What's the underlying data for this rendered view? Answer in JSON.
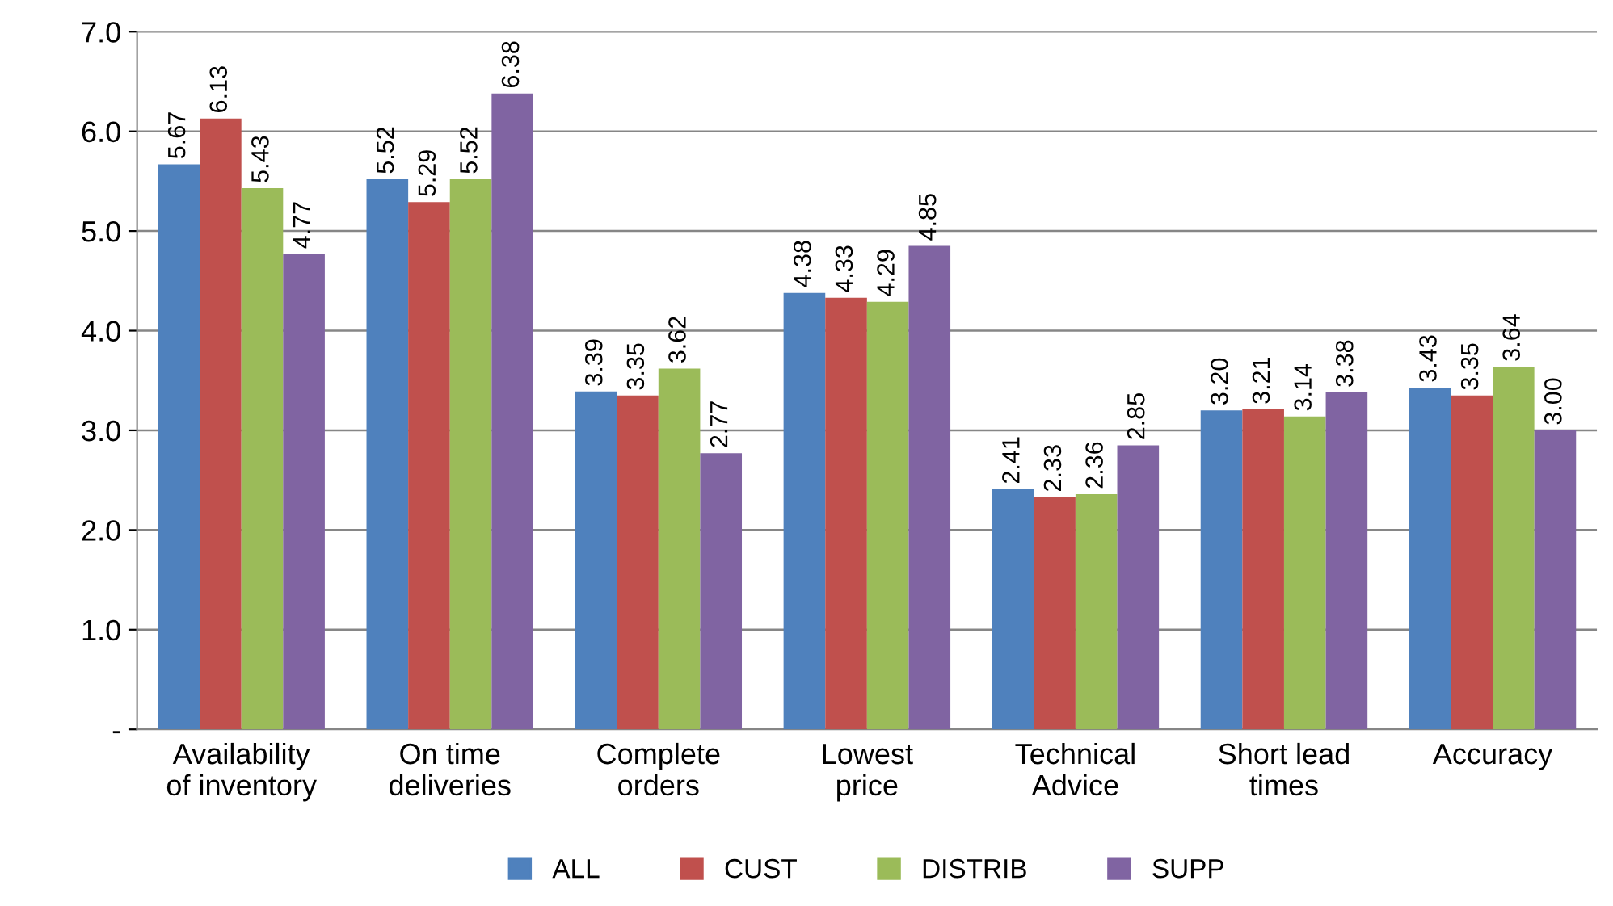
{
  "chart_data": {
    "type": "bar",
    "categories": [
      "Availability\nof inventory",
      "On time\ndeliveries",
      "Complete\norders",
      "Lowest\nprice",
      "Technical\nAdvice",
      "Short lead\ntimes",
      "Accuracy"
    ],
    "series": [
      {
        "name": "ALL",
        "color": "#4f81bd",
        "values": [
          5.67,
          5.52,
          3.39,
          4.38,
          2.41,
          3.2,
          3.43
        ],
        "value_labels": [
          "5.67",
          "5.52",
          "3.39",
          "4.38",
          "2.41",
          "3.20",
          "3.43"
        ]
      },
      {
        "name": "CUST",
        "color": "#c0504d",
        "values": [
          6.13,
          5.29,
          3.35,
          4.33,
          2.33,
          3.21,
          3.35
        ],
        "value_labels": [
          "6.13",
          "5.29",
          "3.35",
          "4.33",
          "2.33",
          "3.21",
          "3.35"
        ]
      },
      {
        "name": "DISTRIB",
        "color": "#9bbb59",
        "values": [
          5.43,
          5.52,
          3.62,
          4.29,
          2.36,
          3.14,
          3.64
        ],
        "value_labels": [
          "5.43",
          "5.52",
          "3.62",
          "4.29",
          "2.36",
          "3.14",
          "3.64"
        ]
      },
      {
        "name": "SUPP",
        "color": "#8064a2",
        "values": [
          4.77,
          6.38,
          2.77,
          4.85,
          2.85,
          3.38,
          3.0
        ],
        "value_labels": [
          "4.77",
          "6.38",
          "2.77",
          "4.85",
          "2.85",
          "3.38",
          "3.00"
        ]
      }
    ],
    "ylim": [
      0,
      7
    ],
    "yticks": [
      {
        "value": 0,
        "label": "-"
      },
      {
        "value": 1,
        "label": "1.0"
      },
      {
        "value": 2,
        "label": "2.0"
      },
      {
        "value": 3,
        "label": "3.0"
      },
      {
        "value": 4,
        "label": "4.0"
      },
      {
        "value": 5,
        "label": "5.0"
      },
      {
        "value": 6,
        "label": "6.0"
      },
      {
        "value": 7,
        "label": "7.0"
      }
    ],
    "grid": "y",
    "legend": "bottom"
  }
}
